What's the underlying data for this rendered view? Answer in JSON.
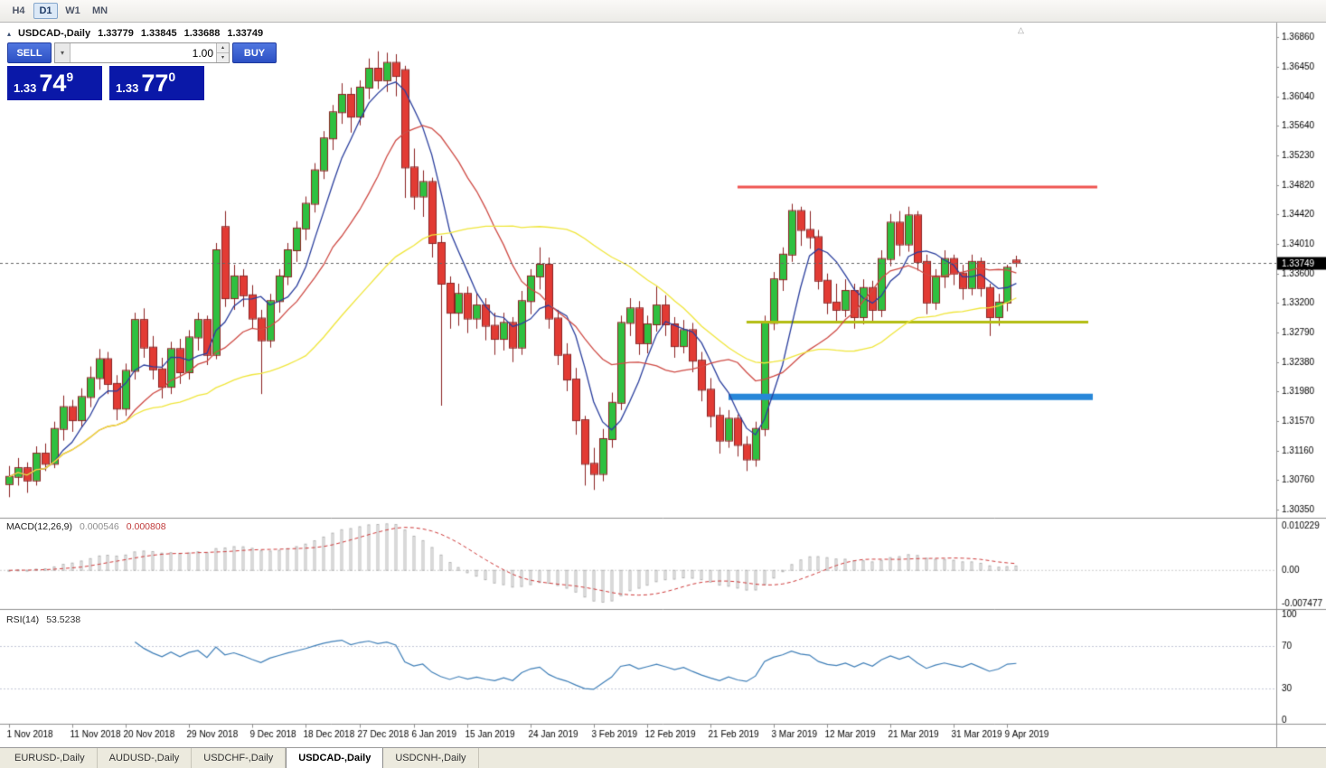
{
  "toolbar": {
    "buttons": [
      {
        "label": "H4",
        "active": false
      },
      {
        "label": "D1",
        "active": true
      },
      {
        "label": "W1",
        "active": false
      },
      {
        "label": "MN",
        "active": false
      }
    ]
  },
  "icons": {
    "collapse_panel": "▴",
    "dropdown": "▾",
    "spin_up": "▴",
    "spin_down": "▾",
    "chart_shift": "△"
  },
  "chart_header": {
    "symbol": "USDCAD-,Daily",
    "open": "1.33779",
    "high": "1.33845",
    "low": "1.33688",
    "close": "1.33749"
  },
  "trade_panel": {
    "sell_label": "SELL",
    "buy_label": "BUY",
    "volume": "1.00",
    "sell_price": {
      "integer": "1.33",
      "pips": "74",
      "point": "9"
    },
    "buy_price": {
      "integer": "1.33",
      "pips": "77",
      "point": "0"
    }
  },
  "indicators": {
    "macd": {
      "label": "MACD(12,26,9)",
      "value_main": "0.000546",
      "value_signal": "0.000808",
      "axis_labels": [
        "0.010229",
        "0.00",
        "-0.007477"
      ]
    },
    "rsi": {
      "label": "RSI(14)",
      "value": "53.5238",
      "axis_labels": [
        "100",
        "70",
        "30",
        "0"
      ]
    }
  },
  "price_axis": {
    "labels": [
      "1.36860",
      "1.36450",
      "1.36040",
      "1.35640",
      "1.35230",
      "1.34820",
      "1.34420",
      "1.34010",
      "1.33600",
      "1.33200",
      "1.32790",
      "1.32380",
      "1.31980",
      "1.31570",
      "1.31160",
      "1.30760",
      "1.30350"
    ],
    "current_price_label": "1.33749"
  },
  "time_axis": {
    "labels": [
      {
        "bar": 0,
        "text": "1 Nov 2018"
      },
      {
        "bar": 7,
        "text": "11 Nov 2018"
      },
      {
        "bar": 13,
        "text": "20 Nov 2018"
      },
      {
        "bar": 20,
        "text": "29 Nov 2018"
      },
      {
        "bar": 27,
        "text": "9 Dec 2018"
      },
      {
        "bar": 33,
        "text": "18 Dec 2018"
      },
      {
        "bar": 39,
        "text": "27 Dec 2018"
      },
      {
        "bar": 45,
        "text": "6 Jan 2019"
      },
      {
        "bar": 51,
        "text": "15 Jan 2019"
      },
      {
        "bar": 58,
        "text": "24 Jan 2019"
      },
      {
        "bar": 65,
        "text": "3 Feb 2019"
      },
      {
        "bar": 71,
        "text": "12 Feb 2019"
      },
      {
        "bar": 78,
        "text": "21 Feb 2019"
      },
      {
        "bar": 85,
        "text": "3 Mar 2019"
      },
      {
        "bar": 91,
        "text": "12 Mar 2019"
      },
      {
        "bar": 98,
        "text": "21 Mar 2019"
      },
      {
        "bar": 105,
        "text": "31 Mar 2019"
      },
      {
        "bar": 111,
        "text": "9 Apr 2019"
      }
    ]
  },
  "tabs": [
    {
      "label": "EURUSD-,Daily",
      "active": false
    },
    {
      "label": "AUDUSD-,Daily",
      "active": false
    },
    {
      "label": "USDCHF-,Daily",
      "active": false
    },
    {
      "label": "USDCAD-,Daily",
      "active": true
    },
    {
      "label": "USDCNH-,Daily",
      "active": false
    }
  ],
  "colors": {
    "bull": "#2fc040",
    "bear": "#e23b34",
    "wick": "#8b2222",
    "ma_fast": "#2b3f9e",
    "ma_mid": "#cf4b45",
    "ma_slow": "#f0e63c",
    "macd_hist": "#b4b4b4",
    "macd_signal": "#cf3a3a",
    "rsi_line": "#3f7fb8",
    "level_dash": "#c4c8d8",
    "hline_red": "#ef5350",
    "hline_olive": "#b3bd13",
    "hline_blue": "#2787d8",
    "price_tag_bg": "#000000",
    "buy_sell_button": "#3a5fd9",
    "price_box": "#0a18a8"
  },
  "chart_data": {
    "type": "candlestick",
    "symbol": "USDCAD",
    "timeframe": "Daily",
    "x_start": "1 Nov 2018",
    "x_end": "10 Apr 2019",
    "price_range": [
      1.3025,
      1.3703
    ],
    "current_price": 1.33749,
    "candles": [
      [
        1.307,
        1.3095,
        1.3052,
        1.308
      ],
      [
        1.308,
        1.3106,
        1.3068,
        1.3092
      ],
      [
        1.3092,
        1.31,
        1.3058,
        1.3075
      ],
      [
        1.3075,
        1.3122,
        1.3068,
        1.3112
      ],
      [
        1.3112,
        1.3126,
        1.3088,
        1.3098
      ],
      [
        1.3098,
        1.3156,
        1.3092,
        1.3146
      ],
      [
        1.3146,
        1.3192,
        1.313,
        1.3176
      ],
      [
        1.3176,
        1.3186,
        1.3142,
        1.3158
      ],
      [
        1.3158,
        1.3202,
        1.3148,
        1.319
      ],
      [
        1.319,
        1.3232,
        1.3176,
        1.3216
      ],
      [
        1.3216,
        1.3256,
        1.32,
        1.3242
      ],
      [
        1.3242,
        1.3252,
        1.3194,
        1.3208
      ],
      [
        1.3208,
        1.322,
        1.3158,
        1.3174
      ],
      [
        1.3174,
        1.3236,
        1.3164,
        1.3226
      ],
      [
        1.3226,
        1.3306,
        1.3214,
        1.3296
      ],
      [
        1.3296,
        1.3312,
        1.3244,
        1.3258
      ],
      [
        1.3258,
        1.3274,
        1.3214,
        1.3228
      ],
      [
        1.3228,
        1.3244,
        1.3188,
        1.3204
      ],
      [
        1.3204,
        1.3266,
        1.3194,
        1.3256
      ],
      [
        1.3256,
        1.327,
        1.3208,
        1.3224
      ],
      [
        1.3224,
        1.3282,
        1.3214,
        1.3272
      ],
      [
        1.3272,
        1.3306,
        1.3254,
        1.3296
      ],
      [
        1.3296,
        1.3302,
        1.3234,
        1.3248
      ],
      [
        1.3248,
        1.3402,
        1.3242,
        1.3392
      ],
      [
        1.3424,
        1.3446,
        1.3314,
        1.3326
      ],
      [
        1.3326,
        1.3372,
        1.331,
        1.3356
      ],
      [
        1.3356,
        1.3366,
        1.3314,
        1.333
      ],
      [
        1.333,
        1.3344,
        1.3284,
        1.3298
      ],
      [
        1.3298,
        1.331,
        1.3194,
        1.3268
      ],
      [
        1.3268,
        1.3332,
        1.3258,
        1.3322
      ],
      [
        1.3322,
        1.3366,
        1.3306,
        1.3356
      ],
      [
        1.3356,
        1.3402,
        1.3344,
        1.3392
      ],
      [
        1.3392,
        1.3432,
        1.3376,
        1.3422
      ],
      [
        1.3422,
        1.3466,
        1.3406,
        1.3456
      ],
      [
        1.3456,
        1.3512,
        1.3444,
        1.3502
      ],
      [
        1.3502,
        1.3556,
        1.349,
        1.3546
      ],
      [
        1.3546,
        1.3592,
        1.353,
        1.3582
      ],
      [
        1.3582,
        1.3622,
        1.3566,
        1.3606
      ],
      [
        1.3606,
        1.3616,
        1.3554,
        1.3576
      ],
      [
        1.3576,
        1.3626,
        1.3564,
        1.3616
      ],
      [
        1.3616,
        1.3656,
        1.36,
        1.3642
      ],
      [
        1.3642,
        1.3666,
        1.3614,
        1.3626
      ],
      [
        1.3626,
        1.3664,
        1.361,
        1.365
      ],
      [
        1.365,
        1.3662,
        1.3604,
        1.3632
      ],
      [
        1.364,
        1.3646,
        1.3464,
        1.3506
      ],
      [
        1.3506,
        1.3532,
        1.3448,
        1.3466
      ],
      [
        1.3466,
        1.3502,
        1.3438,
        1.3486
      ],
      [
        1.3486,
        1.3492,
        1.3382,
        1.3402
      ],
      [
        1.3402,
        1.3412,
        1.3178,
        1.3346
      ],
      [
        1.3346,
        1.3356,
        1.3284,
        1.3306
      ],
      [
        1.3306,
        1.3346,
        1.3288,
        1.3332
      ],
      [
        1.3332,
        1.3342,
        1.3278,
        1.3298
      ],
      [
        1.3298,
        1.3332,
        1.3284,
        1.3316
      ],
      [
        1.3316,
        1.3326,
        1.3268,
        1.3288
      ],
      [
        1.3288,
        1.3306,
        1.3248,
        1.327
      ],
      [
        1.327,
        1.3306,
        1.3254,
        1.3292
      ],
      [
        1.3292,
        1.33,
        1.3238,
        1.3258
      ],
      [
        1.3258,
        1.3336,
        1.3248,
        1.3322
      ],
      [
        1.3322,
        1.3366,
        1.3304,
        1.3356
      ],
      [
        1.3356,
        1.3396,
        1.3338,
        1.3372
      ],
      [
        1.3372,
        1.3382,
        1.3284,
        1.3298
      ],
      [
        1.3298,
        1.331,
        1.3234,
        1.3248
      ],
      [
        1.3248,
        1.3264,
        1.3198,
        1.3214
      ],
      [
        1.3214,
        1.323,
        1.3138,
        1.3158
      ],
      [
        1.3158,
        1.3164,
        1.3068,
        1.3098
      ],
      [
        1.3098,
        1.312,
        1.3062,
        1.3084
      ],
      [
        1.3084,
        1.3146,
        1.3074,
        1.3132
      ],
      [
        1.3132,
        1.3196,
        1.312,
        1.3182
      ],
      [
        1.3182,
        1.3302,
        1.3172,
        1.3292
      ],
      [
        1.3292,
        1.3326,
        1.3274,
        1.3312
      ],
      [
        1.3312,
        1.3322,
        1.3248,
        1.3264
      ],
      [
        1.3264,
        1.3302,
        1.325,
        1.329
      ],
      [
        1.329,
        1.3342,
        1.328,
        1.3316
      ],
      [
        1.3316,
        1.333,
        1.3274,
        1.329
      ],
      [
        1.329,
        1.33,
        1.3244,
        1.326
      ],
      [
        1.326,
        1.3296,
        1.325,
        1.3282
      ],
      [
        1.3282,
        1.3292,
        1.3224,
        1.324
      ],
      [
        1.324,
        1.3252,
        1.3184,
        1.32
      ],
      [
        1.32,
        1.3216,
        1.3148,
        1.3164
      ],
      [
        1.3164,
        1.3176,
        1.3112,
        1.313
      ],
      [
        1.313,
        1.3172,
        1.312,
        1.316
      ],
      [
        1.316,
        1.3166,
        1.3108,
        1.3124
      ],
      [
        1.3124,
        1.3136,
        1.3088,
        1.3104
      ],
      [
        1.3104,
        1.3156,
        1.3094,
        1.3146
      ],
      [
        1.3146,
        1.3302,
        1.3136,
        1.3292
      ],
      [
        1.3292,
        1.3362,
        1.3282,
        1.3352
      ],
      [
        1.3352,
        1.3396,
        1.3336,
        1.3386
      ],
      [
        1.3386,
        1.3456,
        1.3376,
        1.3446
      ],
      [
        1.3446,
        1.3452,
        1.3398,
        1.342
      ],
      [
        1.342,
        1.3446,
        1.3394,
        1.341
      ],
      [
        1.341,
        1.342,
        1.3338,
        1.335
      ],
      [
        1.335,
        1.336,
        1.3304,
        1.332
      ],
      [
        1.332,
        1.3346,
        1.3294,
        1.331
      ],
      [
        1.331,
        1.3352,
        1.33,
        1.3336
      ],
      [
        1.3336,
        1.3346,
        1.3284,
        1.33
      ],
      [
        1.33,
        1.3352,
        1.329,
        1.334
      ],
      [
        1.334,
        1.335,
        1.3294,
        1.331
      ],
      [
        1.331,
        1.3392,
        1.33,
        1.338
      ],
      [
        1.338,
        1.3442,
        1.337,
        1.343
      ],
      [
        1.343,
        1.3446,
        1.3384,
        1.34
      ],
      [
        1.34,
        1.3452,
        1.339,
        1.344
      ],
      [
        1.344,
        1.3446,
        1.3364,
        1.3376
      ],
      [
        1.3376,
        1.3386,
        1.3304,
        1.332
      ],
      [
        1.332,
        1.3366,
        1.331,
        1.3356
      ],
      [
        1.3356,
        1.3392,
        1.334,
        1.338
      ],
      [
        1.338,
        1.3386,
        1.3344,
        1.336
      ],
      [
        1.336,
        1.3372,
        1.3324,
        1.334
      ],
      [
        1.334,
        1.3386,
        1.333,
        1.3376
      ],
      [
        1.3376,
        1.3382,
        1.3328,
        1.334
      ],
      [
        1.334,
        1.3346,
        1.3274,
        1.33
      ],
      [
        1.33,
        1.3332,
        1.3288,
        1.332
      ],
      [
        1.332,
        1.3372,
        1.3308,
        1.3368
      ],
      [
        1.33779,
        1.33845,
        1.33688,
        1.33749
      ]
    ],
    "moving_averages": [
      {
        "type": "sma",
        "period": 6,
        "color": "#2b3f9e"
      },
      {
        "type": "sma",
        "period": 14,
        "color": "#cf4b45"
      },
      {
        "type": "sma",
        "period": 34,
        "color": "#f0e63c"
      }
    ],
    "horizontal_lines": [
      {
        "price": 1.3479,
        "from_bar": 81,
        "to_bar": 121,
        "color": "#ef5350",
        "width": 3
      },
      {
        "price": 1.3293,
        "from_bar": 82,
        "to_bar": 120,
        "color": "#b3bd13",
        "width": 3
      },
      {
        "price": 1.319,
        "from_bar": 80,
        "to_bar": 120.5,
        "color": "#2787d8",
        "width": 7
      }
    ],
    "macd": {
      "fast": 12,
      "slow": 26,
      "signal_period": 9,
      "range": [
        -0.0086,
        0.0116
      ]
    },
    "rsi": {
      "period": 14,
      "levels": [
        70,
        30
      ],
      "range": [
        0,
        100
      ]
    }
  }
}
